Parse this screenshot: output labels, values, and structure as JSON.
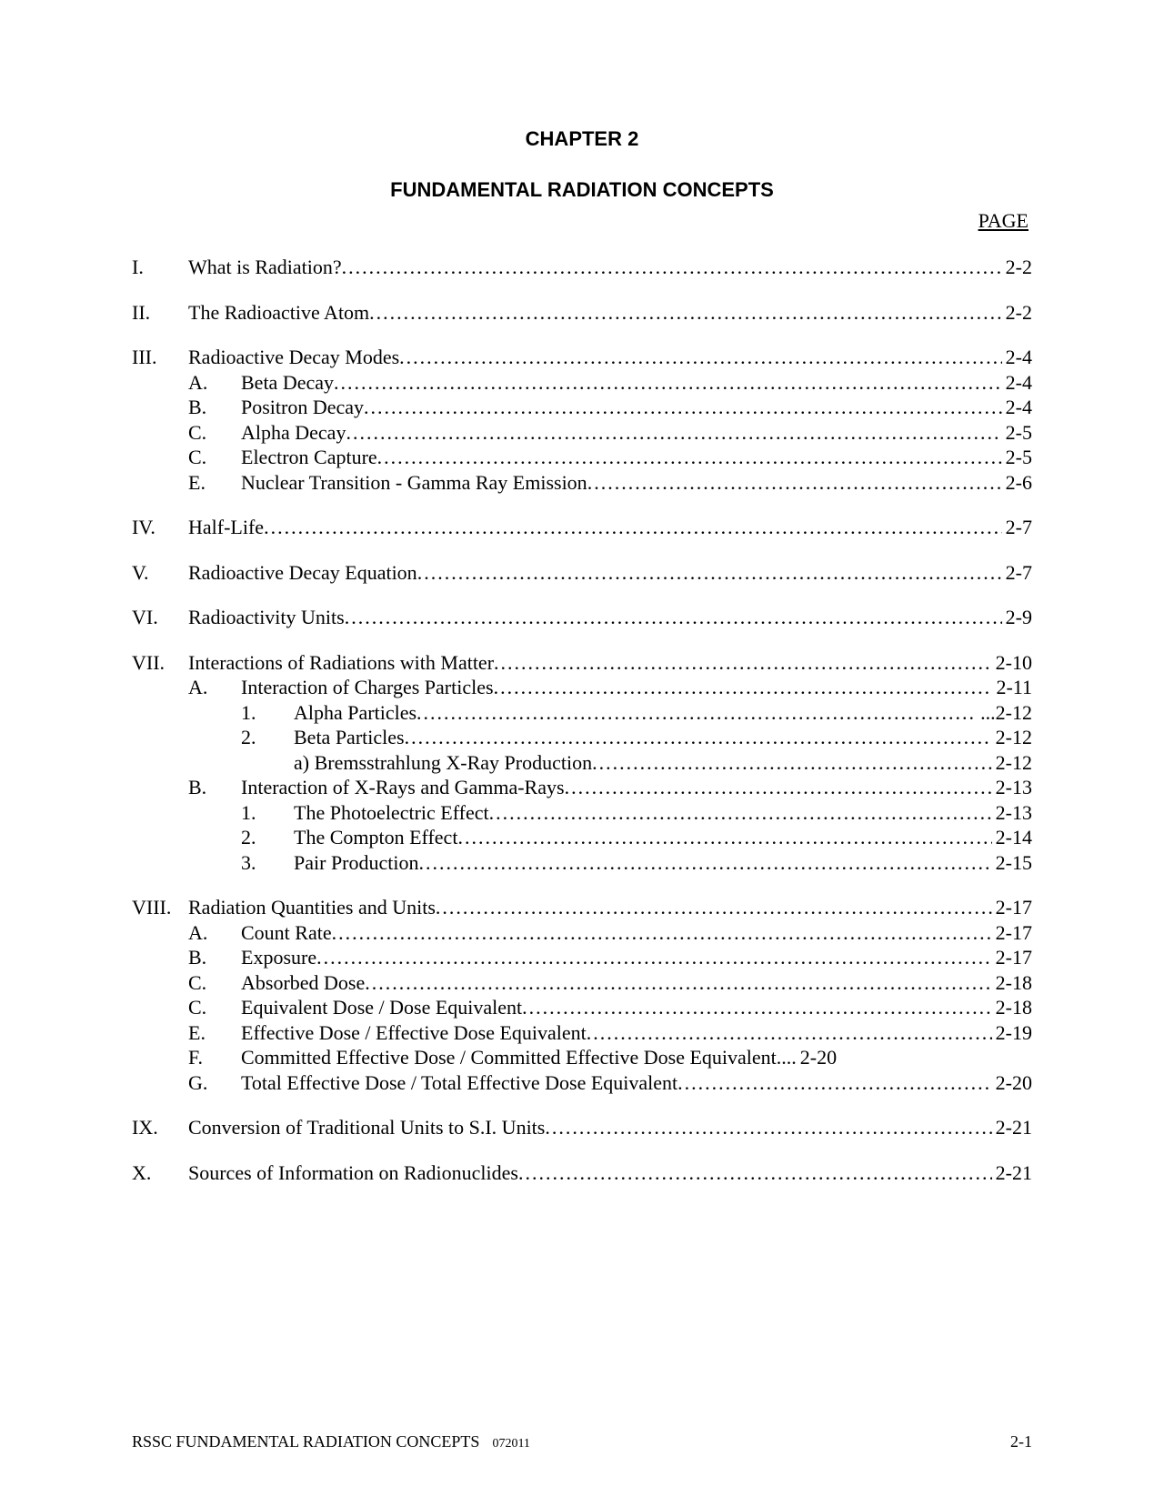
{
  "chapter_label": "CHAPTER 2",
  "chapter_title": "FUNDAMENTAL RADIATION CONCEPTS",
  "page_heading": "PAGE",
  "toc": [
    {
      "roman": "I.",
      "title": "What is Radiation? ",
      "page": "2-2"
    },
    {
      "gap": true
    },
    {
      "roman": "II.",
      "title": "The Radioactive Atom ",
      "page": "2-2"
    },
    {
      "gap": true
    },
    {
      "roman": "III.",
      "title": "Radioactive Decay Modes",
      "page": "2-4"
    },
    {
      "indent": 1,
      "letter": "A.",
      "title": "Beta Decay ",
      "page": "2-4"
    },
    {
      "indent": 1,
      "letter": "B.",
      "title": "Positron Decay ",
      "page": "2-4"
    },
    {
      "indent": 1,
      "letter": "C.",
      "title": "Alpha Decay",
      "page": "2-5"
    },
    {
      "indent": 1,
      "letter": "C.",
      "title": "Electron Capture ",
      "page": "2-5"
    },
    {
      "indent": 1,
      "letter": "E.",
      "title": "Nuclear Transition - Gamma Ray Emission ",
      "page": "2-6"
    },
    {
      "gap": true
    },
    {
      "roman": "IV.",
      "title": "Half-Life",
      "page": "2-7"
    },
    {
      "gap": true
    },
    {
      "roman": "V.",
      "title": "Radioactive Decay Equation",
      "page": "2-7"
    },
    {
      "gap": true
    },
    {
      "roman": "VI.",
      "title": "Radioactivity Units ",
      "page": "2-9"
    },
    {
      "gap": true
    },
    {
      "roman": "VII.",
      "title": "Interactions of Radiations with Matter",
      "page": "2-10"
    },
    {
      "indent": 1,
      "letter": "A.",
      "title": "Interaction of Charges Particles ",
      "page": " 2-11"
    },
    {
      "indent": 2,
      "num": "1.",
      "title": "Alpha Particles",
      "page": " ...2-12"
    },
    {
      "indent": 2,
      "num": "2.",
      "title": "Beta Particles ",
      "page": " 2-12"
    },
    {
      "indent": 3,
      "title": "a) Bremsstrahlung X-Ray Production",
      "page": " 2-12"
    },
    {
      "indent": 1,
      "letter": "B.",
      "title": "Interaction of X-Rays and Gamma-Rays ",
      "page": " 2-13"
    },
    {
      "indent": 2,
      "num": "1.",
      "title": "The Photoelectric Effect ",
      "page": " 2-13"
    },
    {
      "indent": 2,
      "num": "2.",
      "title": "The Compton Effect ",
      "page": " 2-14"
    },
    {
      "indent": 2,
      "num": "3.",
      "title": "Pair Production ",
      "page": " 2-15"
    },
    {
      "gap": true
    },
    {
      "roman": "VIII.",
      "title": "Radiation Quantities and Units",
      "page": " 2-17"
    },
    {
      "indent": 1,
      "letter": "A.",
      "title": "Count Rate ",
      "page": " 2-17"
    },
    {
      "indent": 1,
      "letter": "B.",
      "title": "Exposure ",
      "page": " 2-17"
    },
    {
      "indent": 1,
      "letter": "C.",
      "title": "Absorbed Dose",
      "page": " 2-18"
    },
    {
      "indent": 1,
      "letter": "C.",
      "title": "Equivalent Dose / Dose Equivalent ",
      "page": " 2-18"
    },
    {
      "indent": 1,
      "letter": "E.",
      "title": "Effective Dose / Effective Dose Equivalent ",
      "page": " 2-19"
    },
    {
      "indent": 1,
      "letter": "F.",
      "title": "Committed Effective Dose / Committed Effective Dose Equivalent ",
      "page": " 2-20",
      "no_leader": true,
      "ellipsis": ".... "
    },
    {
      "indent": 1,
      "letter": "G.",
      "title": "Total Effective Dose / Total Effective Dose Equivalent",
      "page": " 2-20"
    },
    {
      "gap": true
    },
    {
      "roman": "IX.",
      "title": "Conversion of Traditional Units to S.I. Units ",
      "page": " 2-21"
    },
    {
      "gap": true
    },
    {
      "roman": "X.",
      "title": "Sources of Information on Radionuclides",
      "page": " 2-21"
    }
  ],
  "footer": {
    "left": "RSSC FUNDAMENTAL RADIATION CONCEPTS",
    "date": "072011",
    "right": "2-1"
  }
}
